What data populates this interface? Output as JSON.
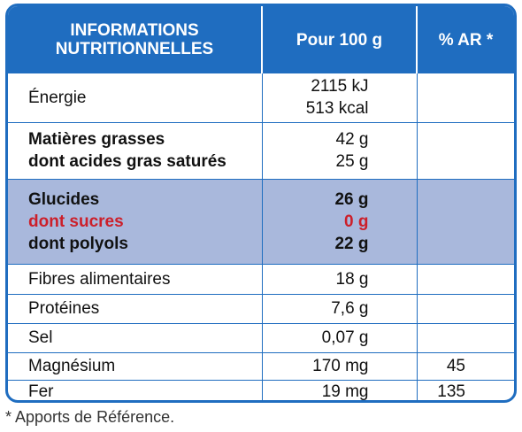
{
  "header": {
    "col1": [
      "INFORMATIONS",
      "NUTRITIONNELLES"
    ],
    "col2": "Pour 100 g",
    "col3": "% AR *"
  },
  "rows": [
    {
      "names": [
        "Énergie"
      ],
      "values": [
        "2115 kJ",
        "513 kcal"
      ],
      "ar": ""
    },
    {
      "names": [
        "Matières grasses",
        "dont acides gras saturés"
      ],
      "values": [
        "42 g",
        "25 g"
      ],
      "ar": ""
    },
    {
      "names": [
        "Glucides",
        "dont sucres",
        "dont polyols"
      ],
      "values": [
        "26 g",
        "0 g",
        "22 g"
      ],
      "ar": ""
    },
    {
      "names": [
        "Fibres alimentaires"
      ],
      "values": [
        "18 g"
      ],
      "ar": ""
    },
    {
      "names": [
        "Protéines"
      ],
      "values": [
        "7,6 g"
      ],
      "ar": ""
    },
    {
      "names": [
        "Sel"
      ],
      "values": [
        "0,07 g"
      ],
      "ar": ""
    },
    {
      "names": [
        "Magnésium"
      ],
      "values": [
        "170 mg"
      ],
      "ar": "45"
    },
    {
      "names": [
        "Fer"
      ],
      "values": [
        "19 mg"
      ],
      "ar": "135"
    }
  ],
  "footnote": "* Apports de Référence.",
  "colors": {
    "frame": "#1f6dc0",
    "highlight": "#a9b8dc",
    "sugar": "#cc1f2a"
  }
}
